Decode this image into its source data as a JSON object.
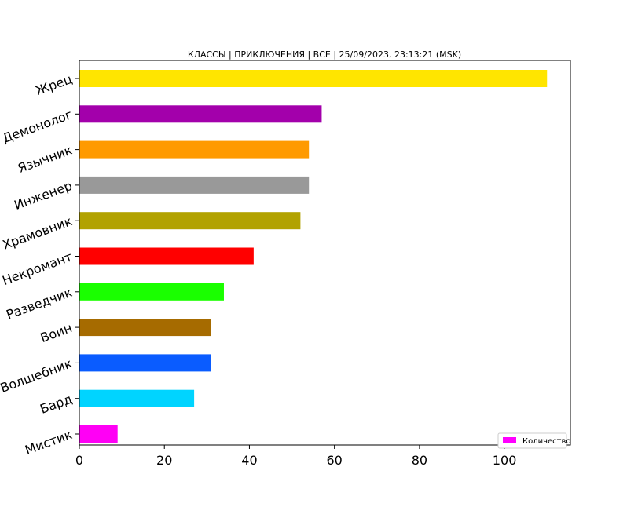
{
  "chart_data": {
    "type": "bar",
    "orientation": "horizontal",
    "title": "КЛАССЫ | ПРИКЛЮЧЕНИЯ | ВСЕ | 25/09/2023, 23:13:21 (MSK)",
    "xlabel": "",
    "ylabel": "",
    "xlim": [
      0,
      115.5
    ],
    "xticks": [
      0,
      20,
      40,
      60,
      80,
      100
    ],
    "grid": false,
    "legend": {
      "position": "bottom-right",
      "entries": [
        "Количество"
      ],
      "color": "#ff00ff"
    },
    "categories": [
      "Жрец",
      "Демонолог",
      "Язычник",
      "Инженер",
      "Храмовник",
      "Некромант",
      "Разведчик",
      "Воин",
      "Волшебник",
      "Бард",
      "Мистик"
    ],
    "values": [
      110,
      57,
      54,
      54,
      52,
      41,
      34,
      31,
      31,
      27,
      9
    ],
    "colors": [
      "#ffe500",
      "#a300ab",
      "#ff9a00",
      "#999999",
      "#b2a200",
      "#ff0000",
      "#1aff00",
      "#a66b00",
      "#0a5cff",
      "#00d4ff",
      "#ff00f5"
    ]
  }
}
